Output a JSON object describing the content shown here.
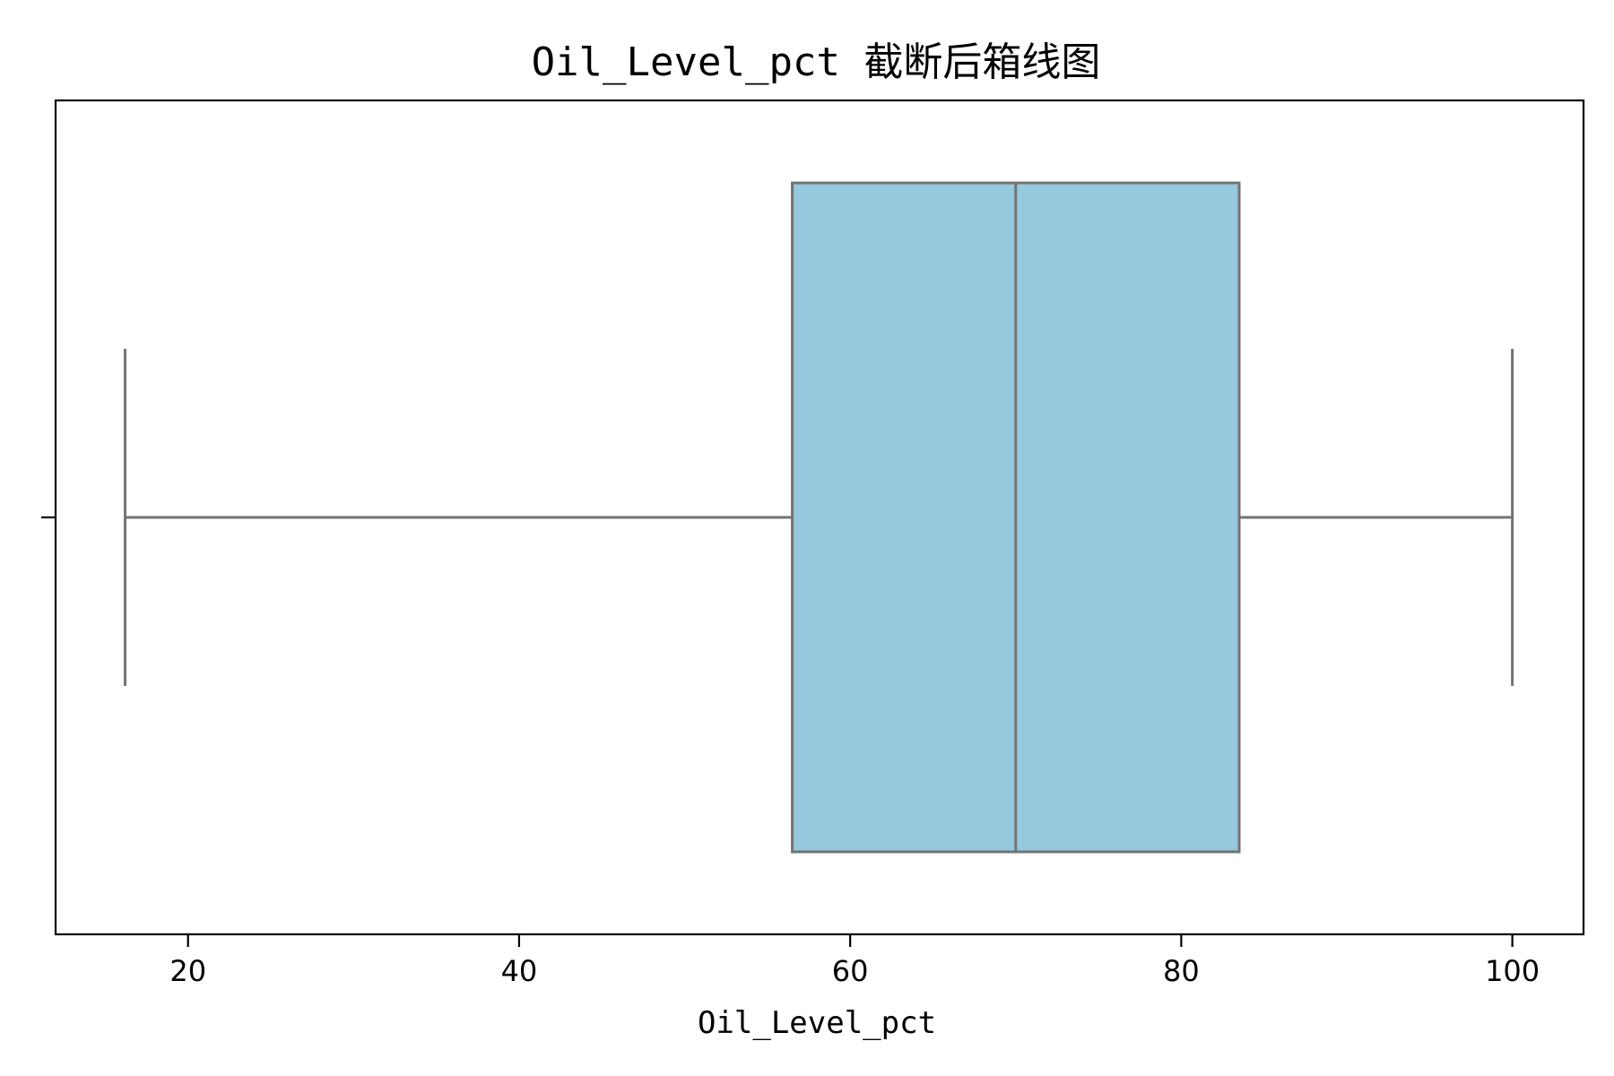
{
  "chart_data": {
    "type": "box",
    "title": "Oil_Level_pct 截断后箱线图",
    "xlabel": "Oil_Level_pct",
    "ylabel": "",
    "xlim": [
      12,
      104.3
    ],
    "x_ticks": [
      20,
      40,
      60,
      80,
      100
    ],
    "x_tick_labels": [
      "20",
      "40",
      "60",
      "80",
      "100"
    ],
    "grid": false,
    "legend": "none",
    "box": {
      "whisker_low": 16.2,
      "q1": 56.5,
      "median": 70.0,
      "q3": 83.5,
      "whisker_high": 100.0
    },
    "colors": {
      "box_fill": "#96c8de",
      "box_edge": "#737373",
      "axes": "#000000"
    }
  }
}
